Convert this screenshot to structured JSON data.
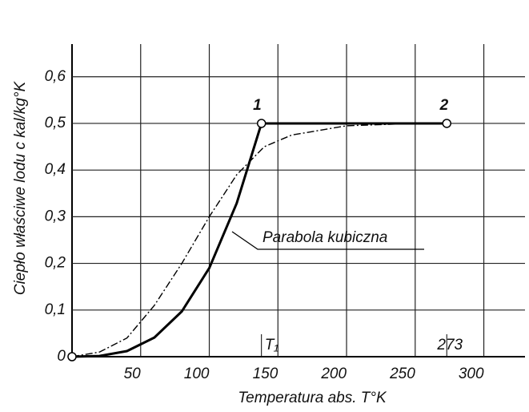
{
  "chart_data": {
    "type": "line",
    "xlabel": "Temperatura abs. T°K",
    "ylabel": "Ciepło właściwe lodu c kal/kg°K",
    "xlim": [
      0,
      330
    ],
    "ylim": [
      0,
      0.67
    ],
    "xticks": [
      50,
      100,
      150,
      200,
      250,
      300
    ],
    "yticks": [
      0,
      {
        "value": 0.1,
        "label": "0,1"
      },
      {
        "value": 0.2,
        "label": "0,2"
      },
      {
        "value": 0.3,
        "label": "0,3"
      },
      {
        "value": 0.4,
        "label": "0,4"
      },
      {
        "value": 0.5,
        "label": "0,5"
      },
      {
        "value": 0.6,
        "label": "0,6"
      }
    ],
    "grid": true,
    "annotations": [
      "1",
      "2",
      "T₁",
      "273",
      "Parabola kubiczna"
    ],
    "series": [
      {
        "style": "solid",
        "color": "#000000",
        "x": [
          0,
          20,
          40,
          60,
          80,
          100,
          120,
          138,
          273
        ],
        "values": [
          0,
          0.0015,
          0.012,
          0.041,
          0.097,
          0.19,
          0.329,
          0.5,
          0.5
        ]
      },
      {
        "style": "dashdot",
        "color": "#000000",
        "x": [
          0,
          20,
          40,
          60,
          80,
          100,
          120,
          140,
          160,
          200,
          250
        ],
        "values": [
          0,
          0.01,
          0.04,
          0.11,
          0.2,
          0.3,
          0.39,
          0.45,
          0.475,
          0.495,
          0.5
        ]
      }
    ]
  }
}
